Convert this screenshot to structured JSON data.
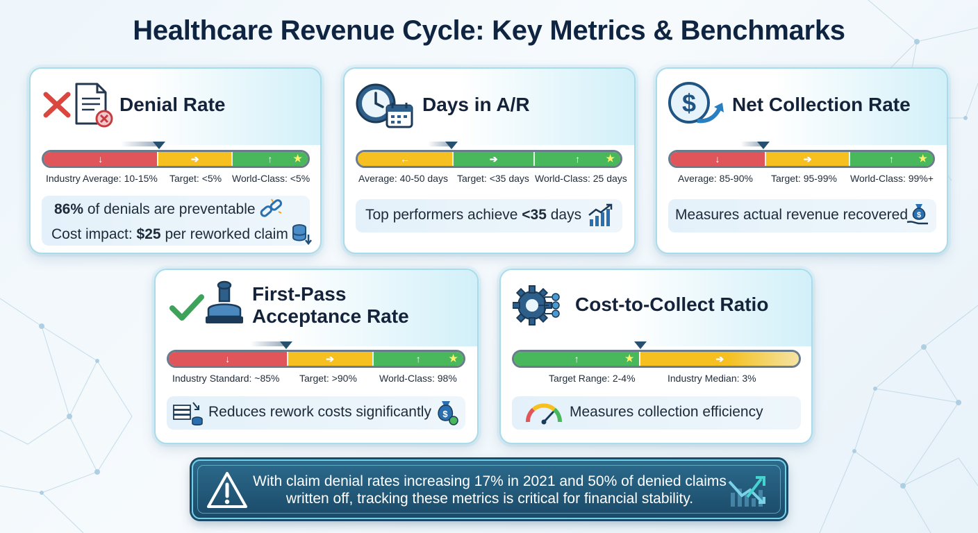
{
  "title": "Healthcare Revenue Cycle: Key Metrics & Benchmarks",
  "colors": {
    "red": "#e05559",
    "yellow": "#f5c020",
    "green": "#49b85c",
    "dark_navy": "#14233a",
    "accent_teal": "#6fd0e6"
  },
  "cards": {
    "denial": {
      "title": "Denial Rate",
      "icons": [
        "x-mark-icon",
        "document-denied-icon"
      ],
      "benchmarks": [
        "Industry Average: 10-15%",
        "Target: <5%",
        "World-Class: <5%"
      ],
      "info_stat": "86%",
      "info_line1": "of denials are preventable",
      "info_line2_prefix": "Cost impact:",
      "info_line2_value": "$25",
      "info_line2_suffix": "per reworked claim"
    },
    "ar": {
      "title": "Days in A/R",
      "icons": [
        "clock-icon",
        "calendar-icon"
      ],
      "benchmarks": [
        "Average: 40-50 days",
        "Target: <35 days",
        "World-Class: 25 days"
      ],
      "info_prefix": "Top performers achieve",
      "info_value": "<35",
      "info_suffix": "days"
    },
    "ncr": {
      "title": "Net Collection Rate",
      "icons": [
        "dollar-circle-icon",
        "growth-arrow-icon"
      ],
      "benchmarks": [
        "Average: 85-90%",
        "Target: 95-99%",
        "World-Class: 99%+"
      ],
      "info": "Measures actual revenue recovered"
    },
    "fpar": {
      "title_line1": "First-Pass",
      "title_line2": "Acceptance Rate",
      "icons": [
        "checkmark-icon",
        "approval-stamp-icon"
      ],
      "benchmarks": [
        "Industry Standard: ~85%",
        "Target: >90%",
        "World-Class: 98%"
      ],
      "info": "Reduces rework costs significantly"
    },
    "ctc": {
      "title": "Cost-to-Collect Ratio",
      "icons": [
        "gear-network-icon"
      ],
      "benchmarks": [
        "Target Range: 2-4%",
        "Industry Median: 3%"
      ],
      "info": "Measures collection efficiency"
    }
  },
  "alert": {
    "line1": "With claim denial rates increasing 17% in 2021 and 50% of denied claims",
    "line2": "written off, tracking these metrics is critical for financial stability."
  }
}
